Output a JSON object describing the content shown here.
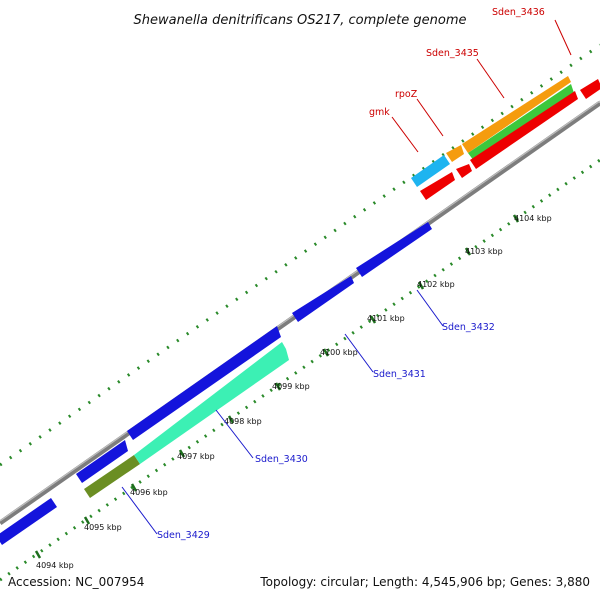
{
  "title": "Shewanella denitrificans OS217, complete genome",
  "footer": {
    "accession": "Accession: NC_007954",
    "summary": "Topology: circular; Length: 4,545,906 bp; Genes: 3,880"
  },
  "colors": {
    "backbone": "#8c8c8c",
    "tick": "#2a8a2a",
    "red_label": "#cc0000",
    "blue_label": "#1a1acc",
    "feature_blue": "#1414dc",
    "feature_red": "#ee0000",
    "feature_orange": "#f59c0e",
    "feature_green": "#3cc83c",
    "feature_cyan": "#1eb4f0",
    "feature_teal": "#3cf0b4",
    "feature_olive": "#6b8e23"
  },
  "kbp_labels": [
    "4094 kbp",
    "4095 kbp",
    "4096 kbp",
    "4097 kbp",
    "4098 kbp",
    "4099 kbp",
    "4100 kbp",
    "4101 kbp",
    "4102 kbp",
    "4103 kbp",
    "4104 kbp"
  ],
  "gene_labels": {
    "sden_3436": "Sden_3436",
    "sden_3435": "Sden_3435",
    "rpoz": "rpoZ",
    "gmk": "gmk",
    "sden_3432": "Sden_3432",
    "sden_3431": "Sden_3431",
    "sden_3430": "Sden_3430",
    "sden_3429": "Sden_3429"
  }
}
